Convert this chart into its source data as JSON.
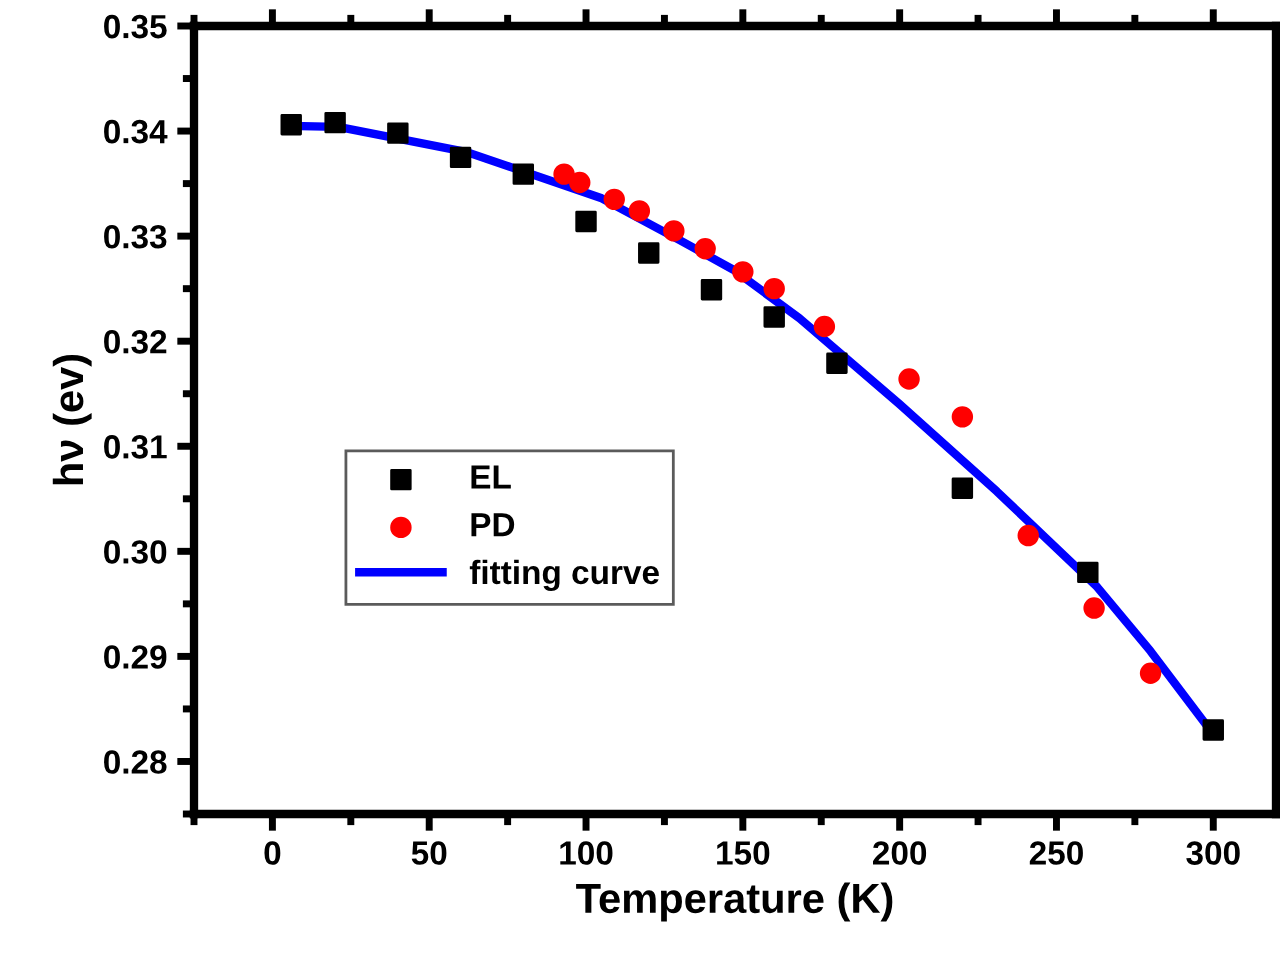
{
  "chart_data": {
    "type": "scatter",
    "xlabel": "Temperature (K)",
    "ylabel": "hν (ev)",
    "xlim": [
      -25,
      320
    ],
    "xticks": [
      0,
      50,
      100,
      150,
      200,
      250,
      300
    ],
    "ylim": [
      0.275,
      0.35
    ],
    "yticks": [
      {
        "value": 0.28,
        "label": "0.28"
      },
      {
        "value": 0.29,
        "label": "0.29"
      },
      {
        "value": 0.3,
        "label": "0.30"
      },
      {
        "value": 0.31,
        "label": "0.31"
      },
      {
        "value": 0.32,
        "label": "0.32"
      },
      {
        "value": 0.33,
        "label": "0.33"
      },
      {
        "value": 0.34,
        "label": "0.34"
      },
      {
        "value": 0.35,
        "label": "0.35"
      }
    ],
    "grid": false,
    "legend": "left",
    "series": [
      {
        "name": "EL",
        "marker": "square",
        "color": "#000000",
        "x": [
          6,
          20,
          40,
          60,
          80,
          100,
          120,
          140,
          160,
          180,
          220,
          260,
          300
        ],
        "values": [
          0.3406,
          0.3408,
          0.3398,
          0.3375,
          0.3359,
          0.3314,
          0.3284,
          0.3249,
          0.3223,
          0.3179,
          0.306,
          0.298,
          0.283
        ]
      },
      {
        "name": "PD",
        "marker": "circle",
        "color": "#ff0000",
        "x": [
          93,
          98,
          109,
          117,
          128,
          138,
          150,
          160,
          176,
          203,
          220,
          241,
          262,
          280
        ],
        "values": [
          0.3359,
          0.3351,
          0.3335,
          0.3324,
          0.3305,
          0.3288,
          0.3266,
          0.325,
          0.3214,
          0.3164,
          0.3128,
          0.3015,
          0.2946,
          0.2884
        ]
      },
      {
        "name": "fitting curve",
        "type": "line",
        "marker": "none",
        "line_style": "solid",
        "color": "#0000ff",
        "x": [
          6,
          21,
          62,
          105,
          130,
          147,
          168,
          200,
          231,
          263,
          280,
          300
        ],
        "values": [
          0.3405,
          0.3404,
          0.338,
          0.3336,
          0.3296,
          0.3268,
          0.3222,
          0.314,
          0.3057,
          0.2966,
          0.2905,
          0.2826
        ]
      }
    ]
  }
}
